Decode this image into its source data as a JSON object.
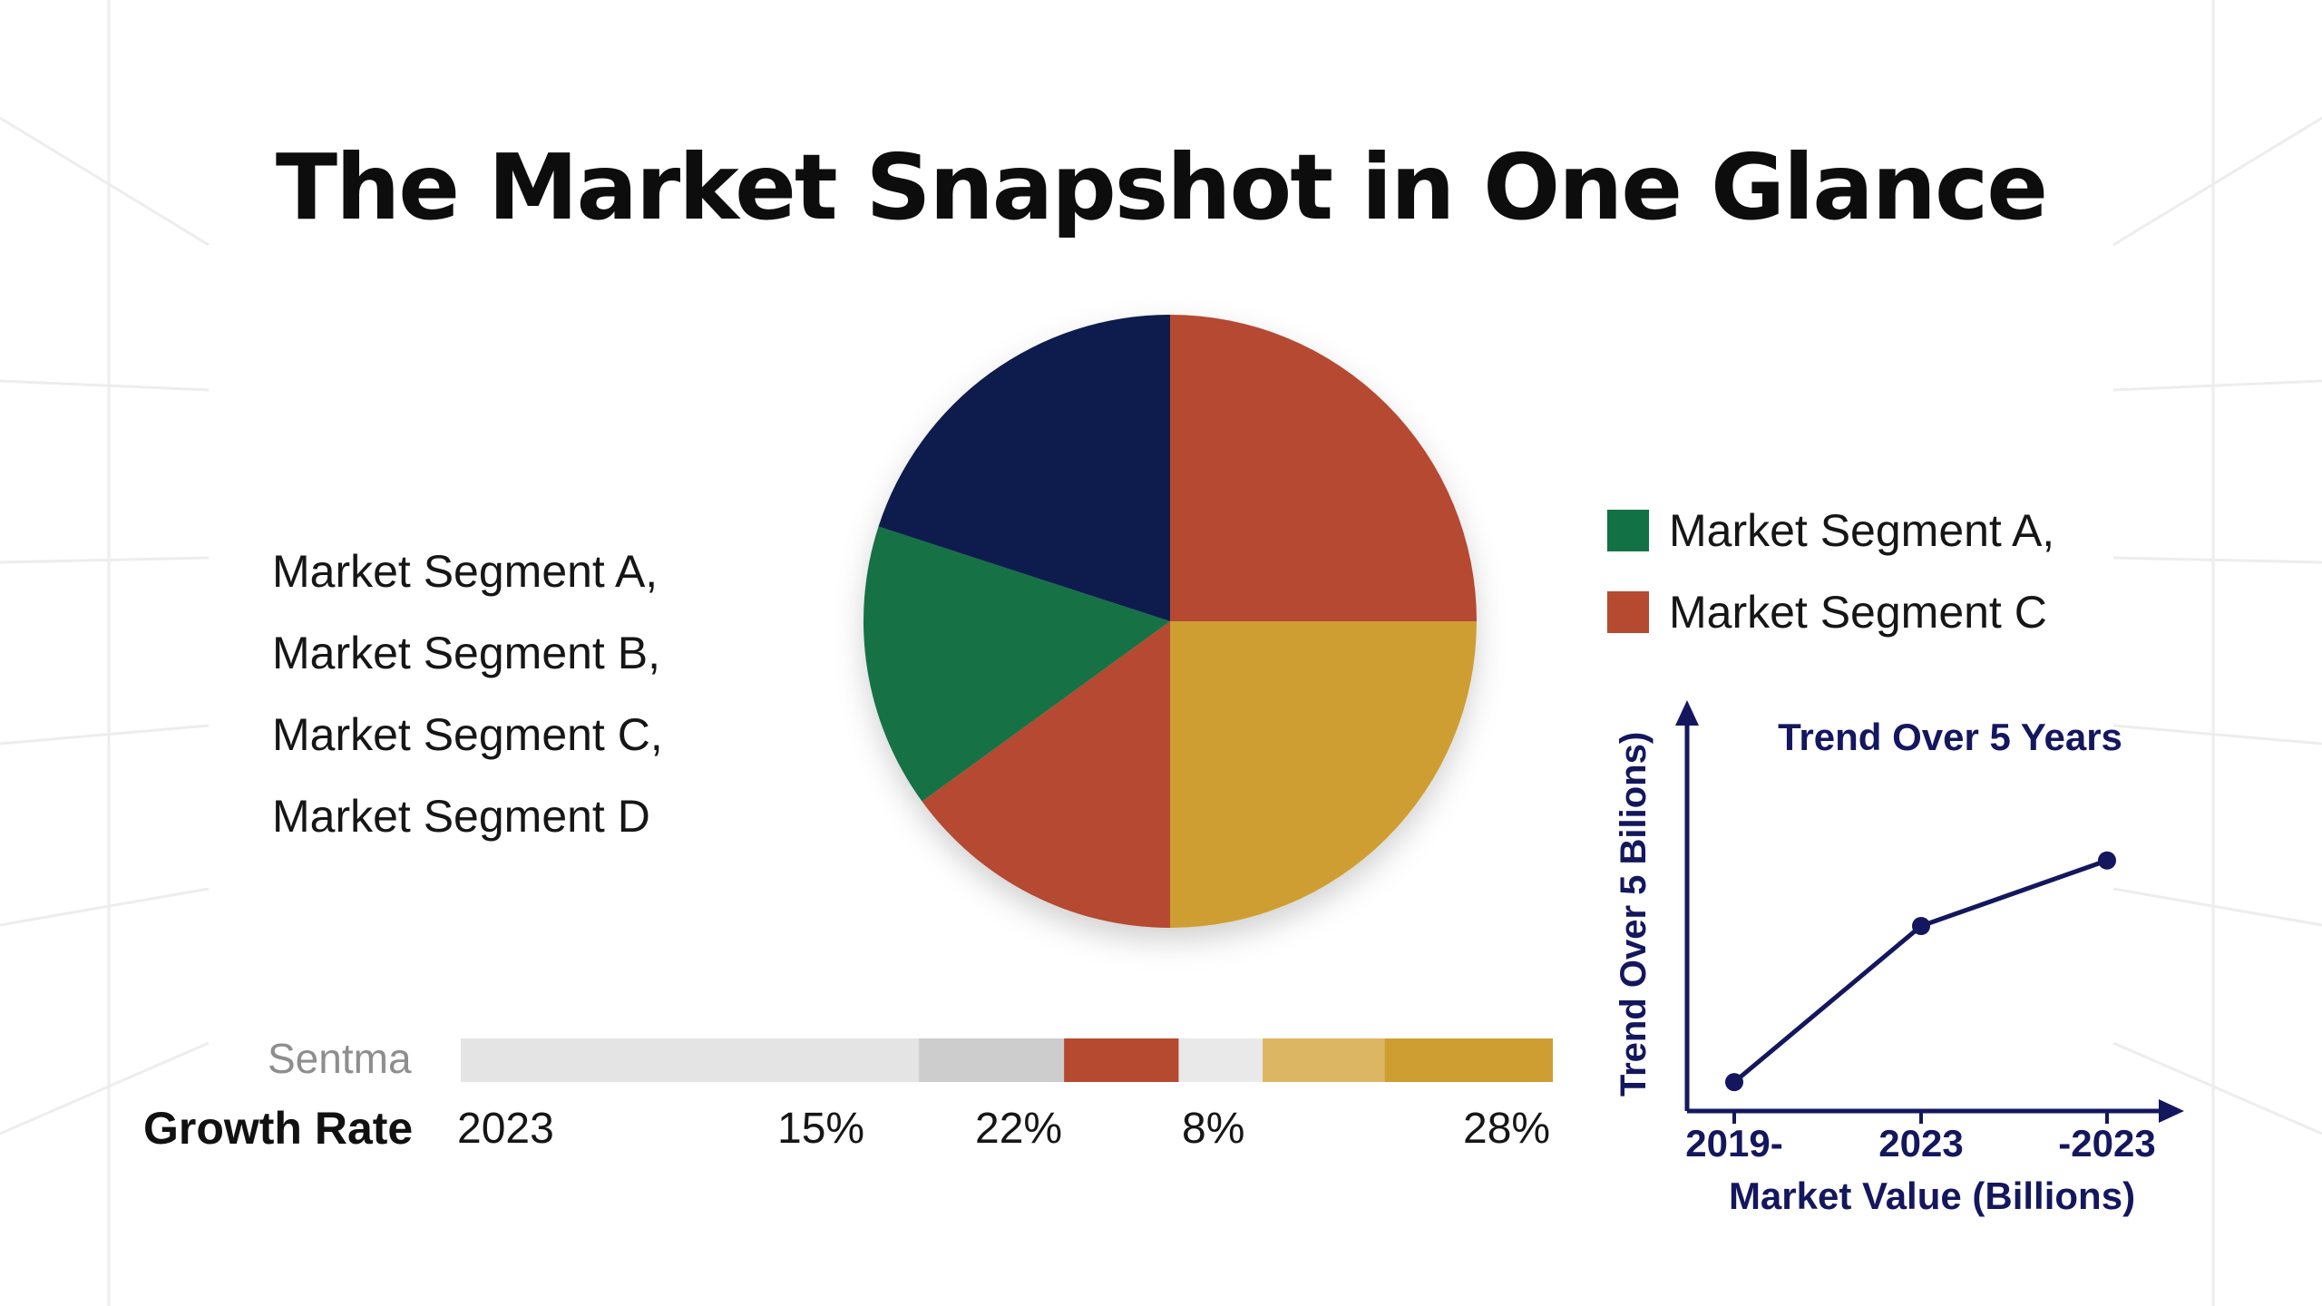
{
  "title": "The Market Snapshot in One Glance",
  "segments_list": [
    "Market Segment A,",
    "Market Segment B,",
    "Market Segment C,",
    "Market Segment D"
  ],
  "colors": {
    "navy": "#0c1a4e",
    "red": "#b54a30",
    "gold": "#cf9e33",
    "green": "#137245",
    "light_gold": "#ddb664",
    "gray_light": "#e4e4e4",
    "gray_mid": "#cdcdcd",
    "gray_pale": "#e9e9e9",
    "line": "#14175e"
  },
  "legend": [
    {
      "label": "Market Segment A,",
      "color": "#137245"
    },
    {
      "label": "Market Segment C",
      "color": "#b54a30"
    }
  ],
  "growth": {
    "sentiment_label": "Sentma",
    "title": "Growth Rate",
    "year": "2023",
    "values": [
      "15%",
      "22%",
      "8%",
      "28%"
    ]
  },
  "chart_data": [
    {
      "type": "pie",
      "title": "",
      "start_angle_deg": 0,
      "slices": [
        {
          "value": 25,
          "color": "#b54a30"
        },
        {
          "value": 25,
          "color": "#cf9e33"
        },
        {
          "value": 15,
          "color": "#b54a30"
        },
        {
          "value": 15,
          "color": "#137245"
        },
        {
          "value": 20,
          "color": "#0c1a4e"
        }
      ]
    },
    {
      "type": "bar",
      "title": "Growth Rate",
      "stacked_horizontal": true,
      "segments": [
        {
          "value": 30,
          "color": "#e4e4e4"
        },
        {
          "value": 9.5,
          "color": "#cdcdcd"
        },
        {
          "value": 7.5,
          "color": "#b54a30"
        },
        {
          "value": 5.5,
          "color": "#e9e9e9"
        },
        {
          "value": 8,
          "color": "#ddb664"
        },
        {
          "value": 11,
          "color": "#cf9e33"
        }
      ]
    },
    {
      "type": "line",
      "title": "Trend Over 5 Years",
      "ylabel": "Trend Over 5 Bilions)",
      "xlabel": "Market Value (Billions)",
      "categories": [
        "2019-",
        "2023",
        "-2023"
      ],
      "values": [
        0.75,
        4.8,
        6.5
      ],
      "ylim": [
        0,
        10
      ]
    }
  ]
}
